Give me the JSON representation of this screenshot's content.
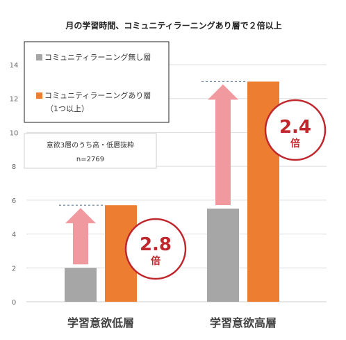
{
  "chart_data": {
    "type": "bar",
    "title": "月の学習時間、コミュニティラーニングあり層で２倍以上",
    "categories": [
      "学習意欲低層",
      "学習意欲高層"
    ],
    "series": [
      {
        "name": "コミュニティラーニング無し層",
        "values": [
          2.0,
          5.5
        ],
        "color": "#a6a6a6"
      },
      {
        "name": "コミュニティラーニングあり層",
        "name_line2": "（1つ以上）",
        "values": [
          5.7,
          13.0
        ],
        "color": "#ed7d31"
      }
    ],
    "ylim": [
      0,
      14
    ],
    "yticks": [
      0,
      2,
      4,
      6,
      8,
      10,
      12,
      14
    ],
    "grid": true,
    "legend_position": "top-left",
    "note": {
      "line1": "意欲3層のうち高・低層抜粋",
      "line2": "n=2769"
    },
    "ratios": [
      {
        "value": "2.8",
        "unit": "倍"
      },
      {
        "value": "2.4",
        "unit": "倍"
      }
    ],
    "colors": {
      "arrow": "#f09aa0",
      "circle": "#c0272d",
      "gridline": "#dddddd",
      "dash": "#4a6b8a"
    }
  }
}
